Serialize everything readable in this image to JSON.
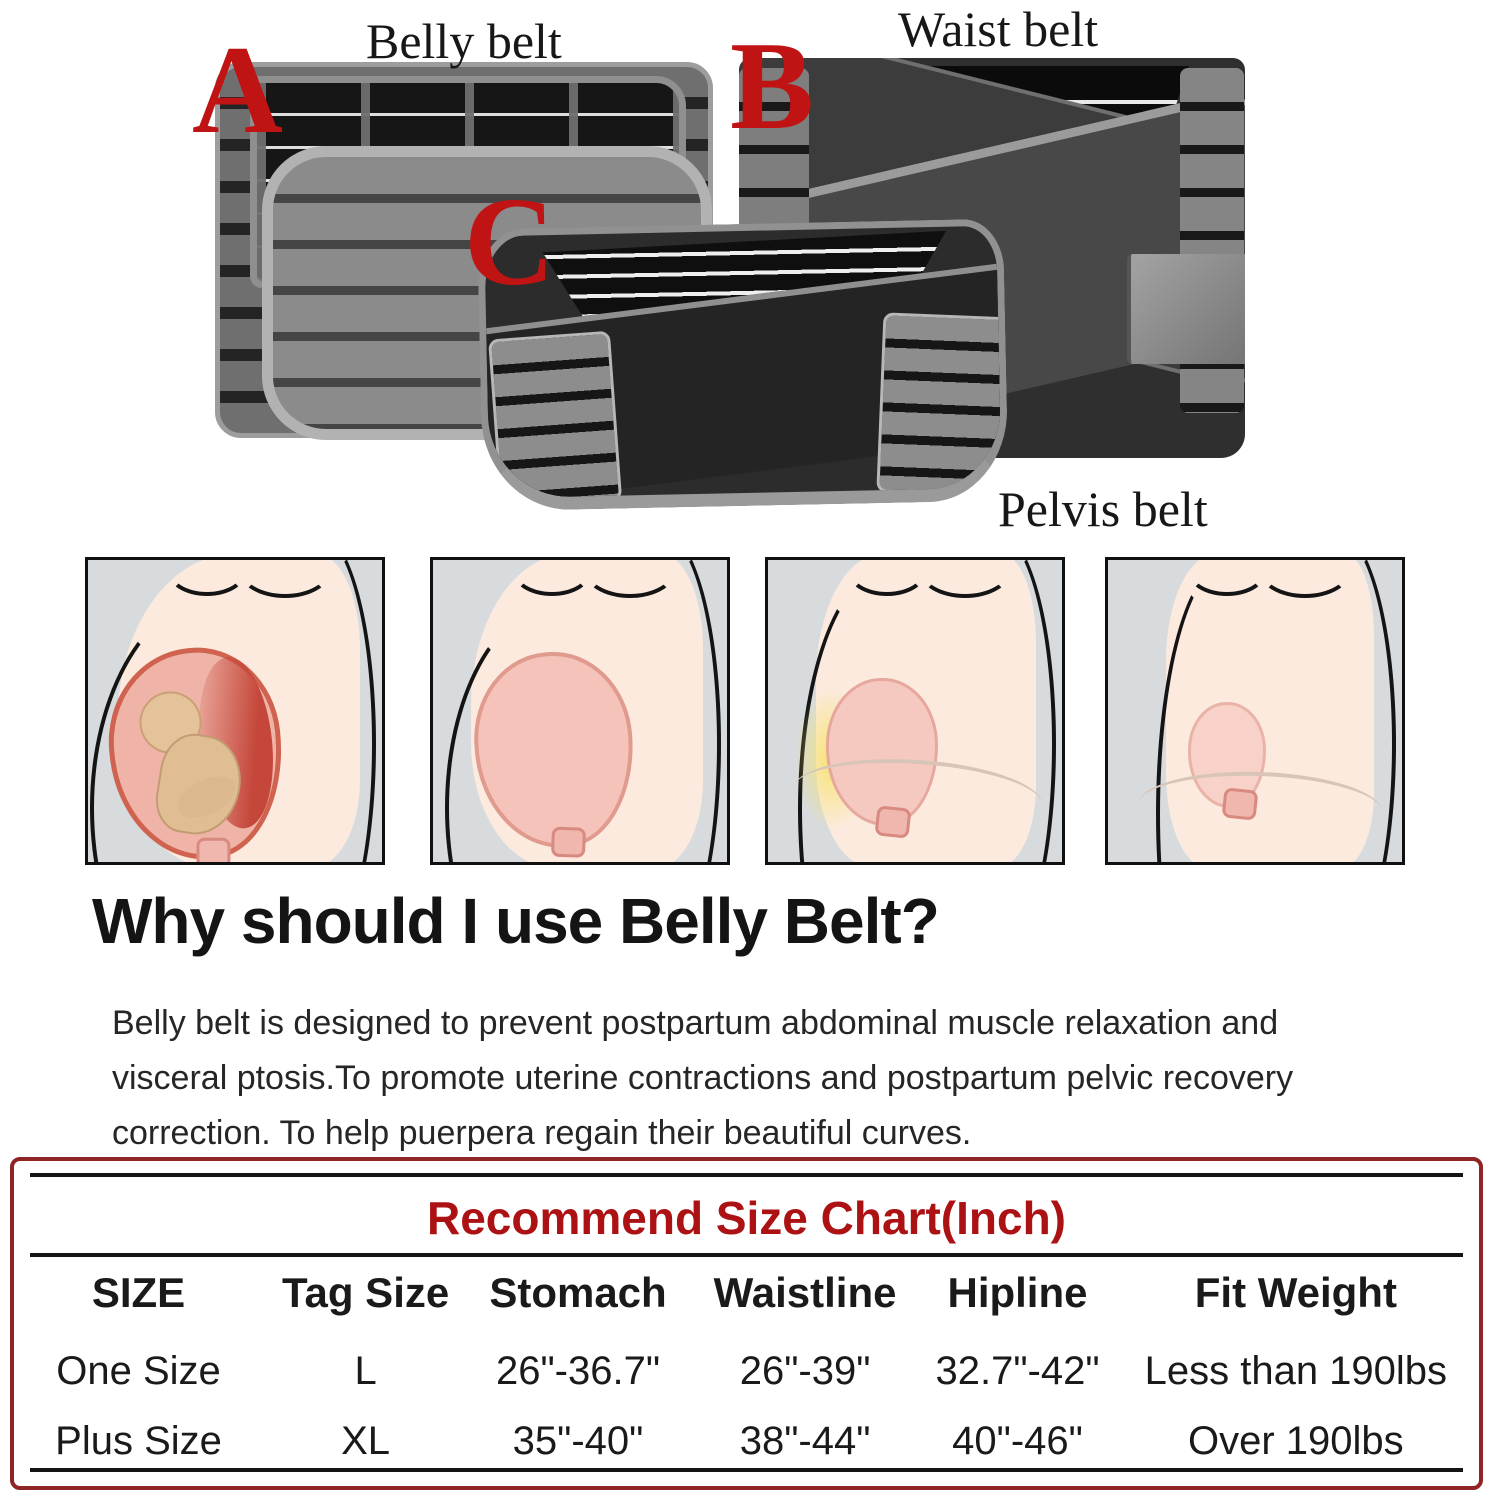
{
  "belts": {
    "belly_label": "Belly belt",
    "waist_label": "Waist belt",
    "pelvis_label": "Pelvis belt",
    "marker_a": "A",
    "marker_b": "B",
    "marker_c": "C"
  },
  "info": {
    "heading": "Why should I use Belly Belt?",
    "description_lines": [
      "Belly belt is designed to prevent postpartum abdominal muscle relaxation and",
      "visceral ptosis.To promote uterine contractions and postpartum pelvic recovery",
      "correction. To help puerpera regain their beautiful curves."
    ]
  },
  "size_chart": {
    "title": "Recommend Size Chart(Inch)",
    "columns": [
      "SIZE",
      "Tag Size",
      "Stomach",
      "Waistline",
      "Hipline",
      "Fit Weight"
    ],
    "rows": [
      [
        "One Size",
        "L",
        "26\"-36.7\"",
        "26\"-39\"",
        "32.7\"-42\"",
        "Less than 190lbs"
      ],
      [
        "Plus Size",
        "XL",
        "35\"-40\"",
        "38\"-44\"",
        "40\"-46\"",
        "Over 190lbs"
      ]
    ]
  },
  "colors": {
    "marker_red": "#c01414",
    "chart_title_red": "#ac1113",
    "chart_border_red": "#8e2424"
  }
}
